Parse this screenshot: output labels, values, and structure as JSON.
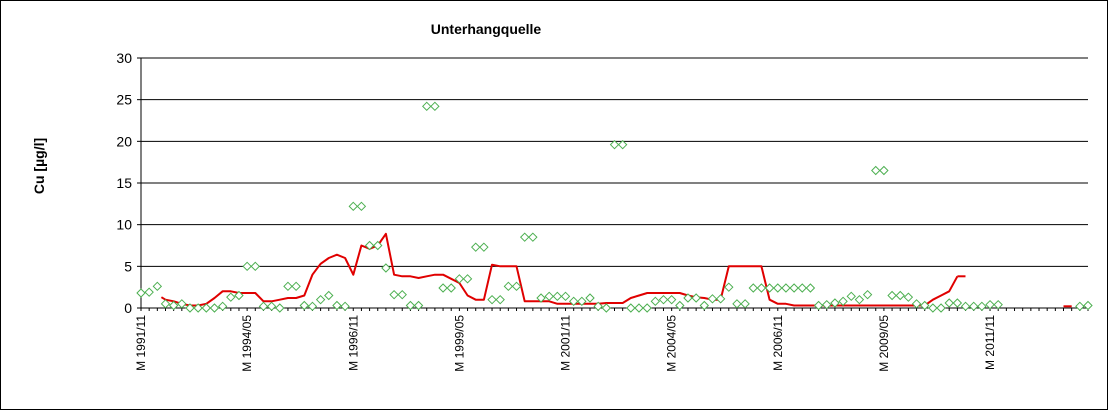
{
  "chart_data": {
    "type": "line",
    "title": "Unterhangquelle",
    "ylabel": "Cu [µg/l]",
    "xlabel": "",
    "ylim": [
      0,
      30
    ],
    "yticks": [
      0,
      5,
      10,
      15,
      20,
      25,
      30
    ],
    "grid": "horizontal",
    "legend": "none",
    "x_categories": [
      "M 1991/11",
      "M 1994/05",
      "M 1996/11",
      "M 1999/05",
      "M 2001/11",
      "M 2004/05",
      "M 2006/11",
      "M 2009/05",
      "M 2011/11"
    ],
    "x_range": [
      0,
      232
    ],
    "x_category_step": 26,
    "colors": {
      "points": "#4caf50",
      "line": "#e00000",
      "grid": "#000000"
    },
    "series": [
      {
        "type": "scatter",
        "marker": "diamond",
        "x": [
          0,
          2,
          4,
          6,
          8,
          10,
          12,
          14,
          16,
          18,
          20,
          22,
          24,
          26,
          28,
          30,
          32,
          34,
          36,
          38,
          40,
          42,
          44,
          46,
          48,
          50,
          52,
          54,
          56,
          58,
          60,
          62,
          64,
          66,
          68,
          70,
          72,
          74,
          76,
          78,
          80,
          82,
          84,
          86,
          88,
          90,
          92,
          94,
          96,
          98,
          100,
          102,
          104,
          106,
          108,
          110,
          112,
          114,
          116,
          118,
          120,
          122,
          124,
          126,
          128,
          130,
          132,
          134,
          136,
          138,
          140,
          142,
          144,
          146,
          148,
          150,
          152,
          154,
          156,
          158,
          160,
          162,
          164,
          166,
          168,
          170,
          172,
          174,
          176,
          178,
          180,
          182,
          184,
          186,
          188,
          190,
          192,
          194,
          196,
          198,
          200,
          202,
          204,
          206,
          208,
          210,
          230,
          232
        ],
        "values": [
          1.8,
          1.9,
          2.6,
          0.5,
          0.3,
          0.5,
          0,
          0,
          0,
          0,
          0.2,
          1.3,
          1.5,
          5,
          5,
          0.2,
          0.2,
          0,
          2.6,
          2.6,
          0.3,
          0.2,
          1,
          1.5,
          0.3,
          0.2,
          12.2,
          12.2,
          7.5,
          7.5,
          4.8,
          1.6,
          1.6,
          0.3,
          0.3,
          24.2,
          24.2,
          2.4,
          2.4,
          3.5,
          3.5,
          7.3,
          7.3,
          1,
          1,
          2.6,
          2.6,
          8.5,
          8.5,
          1.2,
          1.4,
          1.4,
          1.4,
          0.8,
          0.8,
          1.2,
          0.2,
          0,
          19.6,
          19.6,
          0,
          0,
          0,
          0.8,
          1,
          1,
          0.3,
          1.2,
          1.2,
          0.3,
          1.1,
          1.1,
          2.5,
          0.5,
          0.5,
          2.4,
          2.4,
          2.4,
          2.4,
          2.4,
          2.4,
          2.4,
          2.4,
          0.3,
          0.4,
          0.6,
          0.8,
          1.4,
          1,
          1.6,
          16.5,
          16.5,
          1.5,
          1.5,
          1.3,
          0.5,
          0.3,
          0,
          0,
          0.6,
          0.6,
          0.2,
          0.2,
          0.2,
          0.4,
          0.4,
          0.2,
          0.3
        ]
      },
      {
        "type": "line",
        "segments": [
          {
            "x": [
              5,
              6,
              8,
              10,
              12,
              14,
              16,
              18,
              20,
              22,
              24,
              26,
              28,
              30,
              32,
              34,
              36,
              38,
              40,
              42,
              44,
              46,
              48,
              50,
              52,
              54,
              56,
              58,
              60,
              62,
              64,
              66,
              68,
              70,
              72,
              74,
              76,
              78,
              80,
              82,
              84,
              86,
              88,
              90,
              92,
              94,
              96,
              98,
              100,
              102,
              104,
              106,
              108,
              110,
              112,
              114,
              116,
              118,
              120,
              122,
              124,
              126,
              128,
              130,
              132,
              134,
              136,
              138,
              140,
              142,
              144,
              146,
              148,
              150,
              152,
              154,
              156,
              158,
              160,
              162,
              164,
              166,
              168,
              170,
              172,
              174,
              176,
              178,
              180,
              182,
              184,
              186,
              188,
              190,
              192,
              194,
              196,
              198,
              200
            ],
            "values": [
              1.3,
              1,
              0.8,
              0.5,
              0.3,
              0.3,
              0.5,
              1.2,
              2,
              2,
              1.8,
              1.8,
              1.8,
              0.8,
              0.8,
              1,
              1.2,
              1.2,
              1.5,
              4,
              5.3,
              6,
              6.4,
              6,
              4,
              7.5,
              7.1,
              7.5,
              8.9,
              4,
              3.8,
              3.8,
              3.6,
              3.8,
              4,
              4,
              3.5,
              3,
              1.5,
              1,
              1,
              5.2,
              5,
              5,
              5,
              0.8,
              0.8,
              0.8,
              0.8,
              0.5,
              0.5,
              0.5,
              0.5,
              0.5,
              0.5,
              0.6,
              0.6,
              0.6,
              1.2,
              1.5,
              1.8,
              1.8,
              1.8,
              1.8,
              1.8,
              1.5,
              1.3,
              1.2,
              1,
              1,
              5,
              5,
              5,
              5,
              5,
              1,
              0.5,
              0.5,
              0.3,
              0.3,
              0.3,
              0.3,
              0.3,
              0.3,
              0.3,
              0.3,
              0.3,
              0.3,
              0.3,
              0.3,
              0.3,
              0.3,
              0.3,
              0.3,
              0.3,
              1,
              1.5,
              2,
              3.8
            ]
          },
          {
            "x": [
              200,
              202
            ],
            "values": [
              3.8,
              3.8
            ]
          },
          {
            "x": [
              226,
              228
            ],
            "values": [
              0.2,
              0.2
            ]
          }
        ]
      }
    ]
  }
}
